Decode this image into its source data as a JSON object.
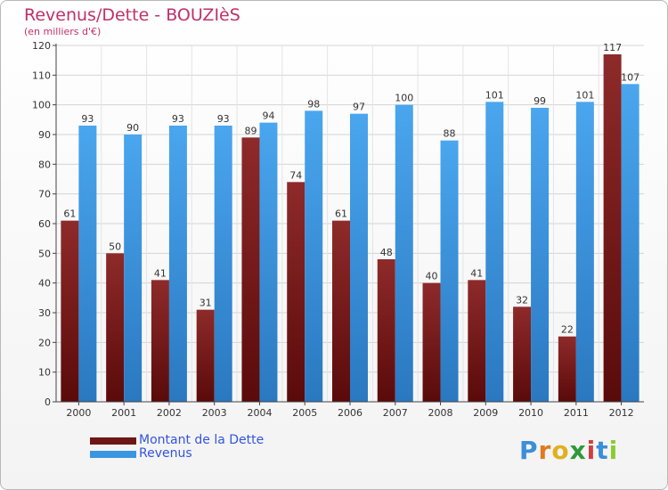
{
  "chart_data": {
    "type": "bar",
    "title": "Revenus/Dette - BOUZIèS",
    "subtitle": "(en milliers d'€)",
    "categories": [
      "2000",
      "2001",
      "2002",
      "2003",
      "2004",
      "2005",
      "2006",
      "2007",
      "2008",
      "2009",
      "2010",
      "2011",
      "2012"
    ],
    "series": [
      {
        "name": "Montant de la Dette",
        "color": "#7a1e1e",
        "values": [
          61,
          50,
          41,
          31,
          89,
          74,
          61,
          48,
          40,
          41,
          32,
          22,
          117
        ]
      },
      {
        "name": "Revenus",
        "color": "#3a96e0",
        "values": [
          93,
          90,
          93,
          93,
          94,
          98,
          97,
          100,
          88,
          101,
          99,
          101,
          107
        ]
      }
    ],
    "yticks": [
      0,
      10,
      20,
      30,
      40,
      50,
      60,
      70,
      80,
      90,
      100,
      110,
      120
    ],
    "ylim": [
      0,
      120
    ],
    "grid": true,
    "legend_position": "bottom-left"
  },
  "logo": {
    "letters": [
      {
        "ch": "P",
        "color": "#3a8fd8"
      },
      {
        "ch": "r",
        "color": "#e07a20"
      },
      {
        "ch": "o",
        "color": "#e0b020"
      },
      {
        "ch": "x",
        "color": "#2e9a3a"
      },
      {
        "ch": "i",
        "color": "#d04040"
      },
      {
        "ch": "t",
        "color": "#3a8fd8"
      },
      {
        "ch": "i",
        "color": "#8acc30"
      }
    ]
  }
}
